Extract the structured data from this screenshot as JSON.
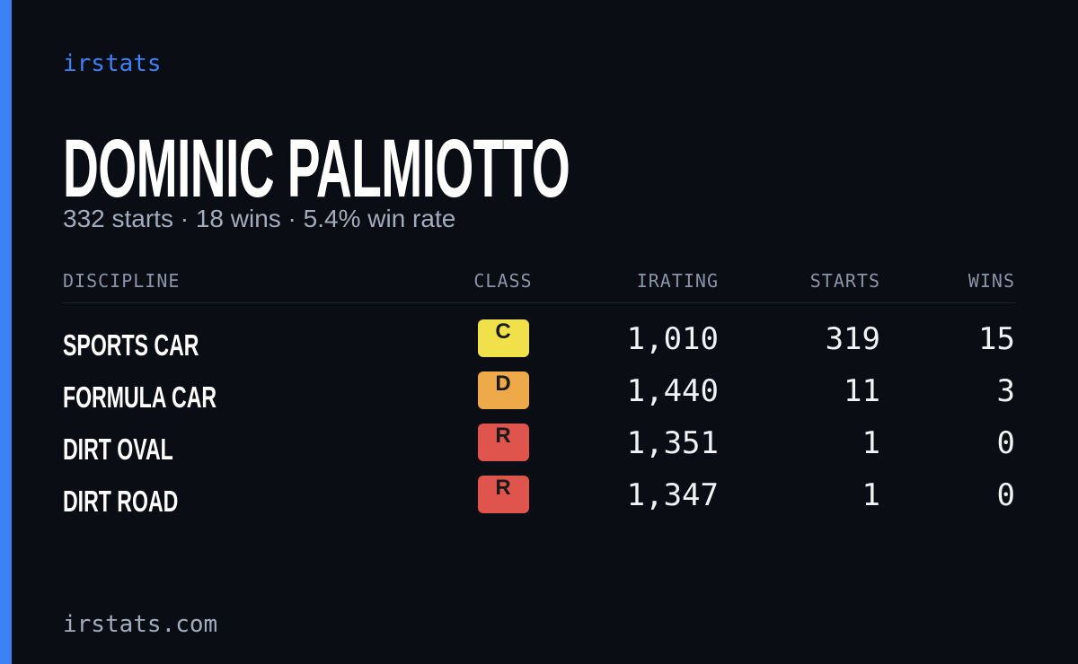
{
  "brand": "irstats",
  "driver": {
    "name": "DOMINIC PALMIOTTO",
    "summary": "332 starts · 18 wins · 5.4% win rate"
  },
  "table": {
    "headers": [
      "DISCIPLINE",
      "CLASS",
      "IRATING",
      "STARTS",
      "WINS"
    ],
    "rows": [
      {
        "discipline": "SPORTS CAR",
        "class": "C",
        "class_color": "#f0e04a",
        "irating": "1,010",
        "starts": "319",
        "wins": "15"
      },
      {
        "discipline": "FORMULA CAR",
        "class": "D",
        "class_color": "#eeaa48",
        "irating": "1,440",
        "starts": "11",
        "wins": "3"
      },
      {
        "discipline": "DIRT OVAL",
        "class": "R",
        "class_color": "#e0544e",
        "irating": "1,351",
        "starts": "1",
        "wins": "0"
      },
      {
        "discipline": "DIRT ROAD",
        "class": "R",
        "class_color": "#e0544e",
        "irating": "1,347",
        "starts": "1",
        "wins": "0"
      }
    ]
  },
  "footer": "irstats.com"
}
